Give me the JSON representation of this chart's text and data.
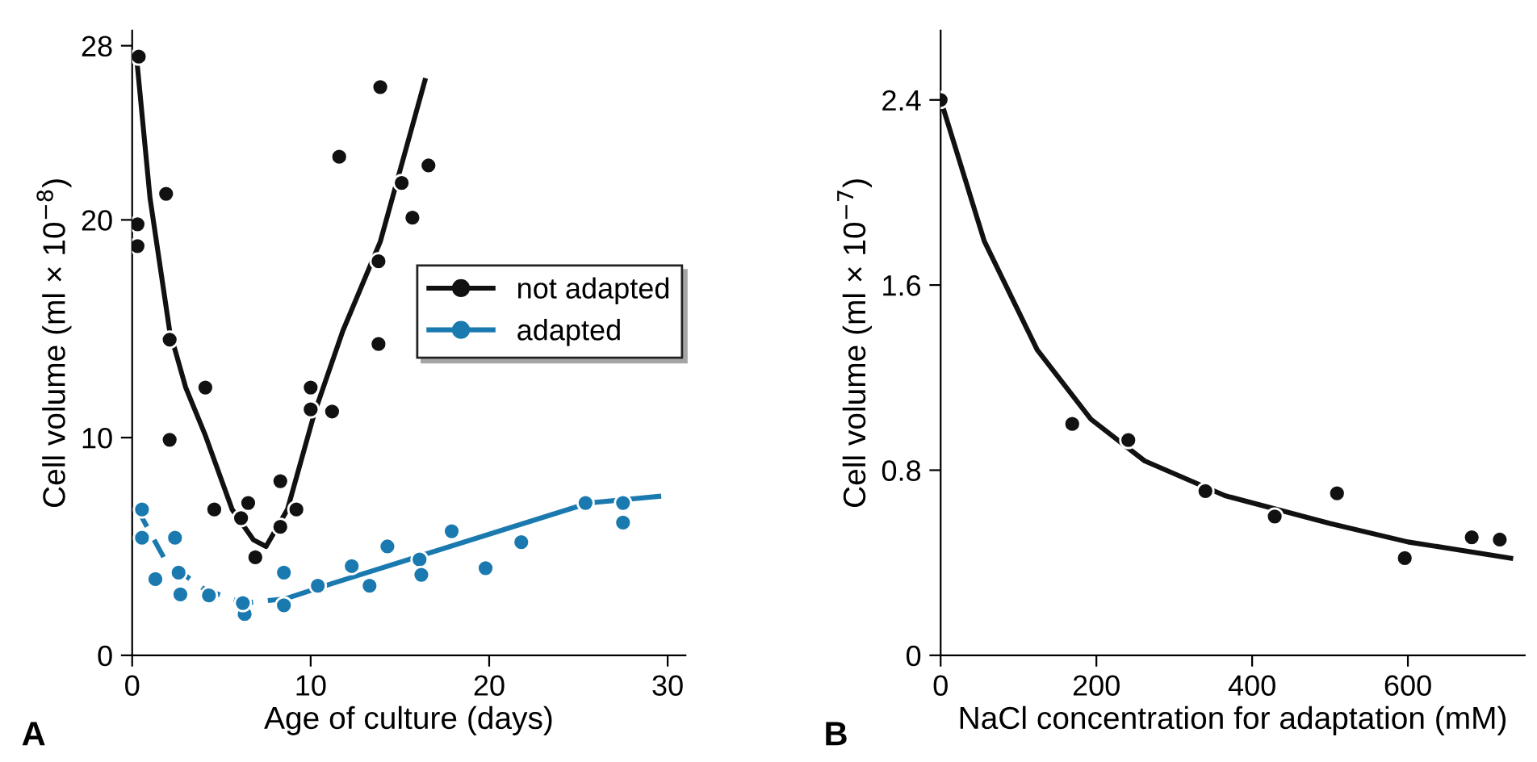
{
  "chart_data": [
    {
      "type": "scatter",
      "xlabel": "Age of culture (days)",
      "ylabel": "Cell volume (ml × 10$^{−8}$)",
      "annotations": [
        "A"
      ],
      "xlim": [
        0,
        31
      ],
      "xticks": [
        0,
        10,
        20,
        30
      ],
      "ylim": [
        0,
        28.7
      ],
      "yticks": [
        0,
        10,
        20,
        28
      ],
      "grid": false,
      "legend": "right",
      "series": [
        {
          "name": "not adapted",
          "marker": "circle",
          "color": "#111111",
          "x": [
            0.37,
            0.3,
            0.3,
            1.9,
            2.1,
            2.1,
            4.1,
            4.6,
            6.5,
            6.1,
            6.9,
            8.3,
            8.3,
            9.2,
            10.0,
            10.0,
            11.2,
            11.6,
            13.9,
            13.8,
            13.8,
            15.1,
            15.7,
            16.6
          ],
          "values": [
            27.5,
            19.8,
            18.8,
            21.2,
            14.5,
            9.9,
            12.3,
            6.7,
            7.0,
            6.3,
            4.5,
            5.9,
            8.0,
            6.7,
            12.3,
            11.3,
            11.2,
            22.9,
            26.1,
            18.1,
            14.3,
            21.7,
            20.1,
            22.5
          ]
        },
        {
          "type": "line",
          "line_style": "solid",
          "color": "#111111",
          "x": [
            0.3,
            1.0,
            2.1,
            3.0,
            4.1,
            5.6,
            6.8,
            7.5,
            8.7,
            10.2,
            11.8,
            13.9,
            16.4
          ],
          "values": [
            27.0,
            21.0,
            14.9,
            12.3,
            10.1,
            6.7,
            5.3,
            5.0,
            6.7,
            11.1,
            14.9,
            19.0,
            26.4
          ]
        },
        {
          "name": "adapted",
          "marker": "circle",
          "color": "#1a7ab0",
          "x": [
            0.55,
            0.55,
            1.3,
            2.4,
            2.6,
            2.7,
            4.3,
            6.3,
            6.2,
            8.5,
            8.5,
            10.4,
            12.3,
            13.3,
            14.3,
            16.1,
            16.2,
            17.9,
            19.8,
            21.8,
            25.4,
            27.5,
            27.5
          ],
          "values": [
            6.7,
            5.4,
            3.5,
            5.4,
            3.8,
            2.8,
            2.75,
            1.9,
            2.4,
            3.8,
            2.3,
            3.2,
            4.1,
            3.2,
            5.0,
            4.4,
            3.7,
            5.7,
            4.0,
            5.2,
            7.0,
            7.0,
            6.1
          ]
        },
        {
          "type": "line",
          "line_style": "dashed",
          "color": "#1a7ab0",
          "x": [
            0.3,
            1.9,
            4.1,
            6.3,
            8.6
          ],
          "values": [
            6.7,
            4.3,
            3.0,
            2.4,
            2.6
          ]
        },
        {
          "type": "line",
          "line_style": "solid",
          "color": "#1a7ab0",
          "x": [
            8.6,
            11.2,
            25.6,
            29.5
          ],
          "values": [
            2.6,
            3.3,
            7.0,
            7.3
          ]
        }
      ]
    },
    {
      "type": "scatter",
      "xlabel": "NaCl concentration for adaptation (mM)",
      "ylabel": "Cell volume (ml × 10$^{−7}$)",
      "annotations": [
        "B"
      ],
      "xlim": [
        0,
        750
      ],
      "xticks": [
        0,
        200,
        400,
        600
      ],
      "ylim": [
        0,
        2.7
      ],
      "yticks": [
        0,
        0.8,
        1.6,
        2.4
      ],
      "grid": false,
      "series": [
        {
          "marker": "circle",
          "color": "#111111",
          "x": [
            0,
            169,
            241,
            340,
            429,
            509,
            596,
            682,
            718
          ],
          "values": [
            2.4,
            1.0,
            0.93,
            0.71,
            0.6,
            0.7,
            0.42,
            0.51,
            0.5
          ]
        },
        {
          "type": "line",
          "line_style": "solid",
          "color": "#111111",
          "x": [
            0,
            56,
            124,
            193,
            262,
            365,
            500,
            600,
            732
          ],
          "values": [
            2.4,
            1.79,
            1.32,
            1.02,
            0.84,
            0.69,
            0.57,
            0.49,
            0.42
          ]
        }
      ]
    }
  ]
}
